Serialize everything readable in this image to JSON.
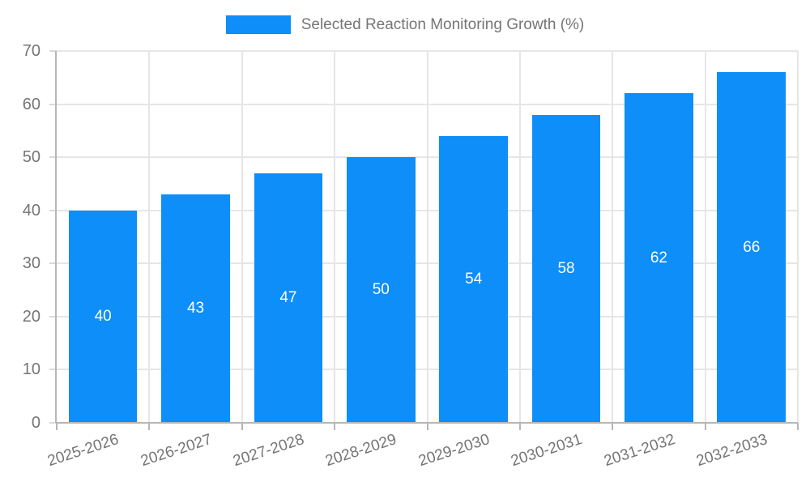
{
  "chart_data": {
    "type": "bar",
    "title": "Selected Reaction Monitoring Growth (%)",
    "categories": [
      "2025-2026",
      "2026-2027",
      "2027-2028",
      "2028-2029",
      "2029-2030",
      "2030-2031",
      "2031-2032",
      "2032-2033"
    ],
    "values": [
      40,
      43,
      47,
      50,
      54,
      58,
      62,
      66
    ],
    "xlabel": "",
    "ylabel": "",
    "ylim": [
      0,
      70
    ],
    "ytick_step": 10,
    "grid": true,
    "legend_position": "top-center",
    "value_labels": "inside-center",
    "colors": {
      "bar": "#0d8ef9",
      "value_label": "#ffffff",
      "axis_text": "#757575",
      "gridline": "#e6e6e6",
      "axis_line": "#b6b6b6",
      "background": "#ffffff"
    }
  }
}
